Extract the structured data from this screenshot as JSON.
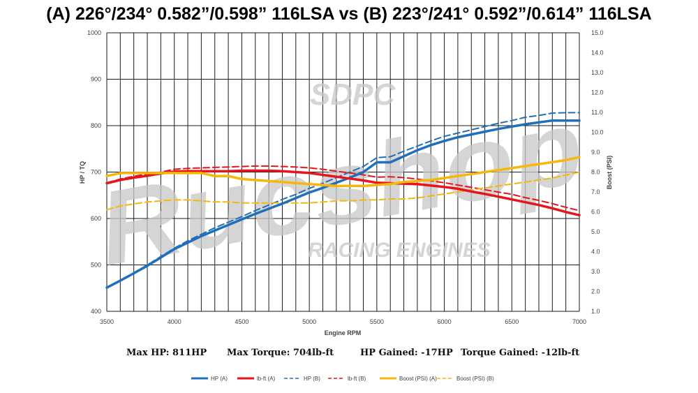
{
  "title": "(A) 226°/234° 0.582”/0.598” 116LSA vs (B) 223°/241° 0.592”/0.614” 116LSA",
  "watermark": {
    "main": "Rucshop",
    "top": "SDPC",
    "bottom": "RACING ENGINES"
  },
  "stats": {
    "max_hp": "Max HP: 811HP",
    "max_torque": "Max Torque: 704lb-ft",
    "hp_gained": "HP Gained: -17HP",
    "torque_gained": "Torque Gained: -12lb-ft"
  },
  "chart_data": {
    "type": "line",
    "xlabel": "Engine RPM",
    "ylabel": "HP / TQ",
    "y2label": "Boost (PSI)",
    "xlim": [
      3500,
      7000
    ],
    "ylim": [
      400,
      1000
    ],
    "y2lim": [
      1.0,
      15.0
    ],
    "x_ticks": [
      3500,
      4000,
      4500,
      5000,
      5500,
      6000,
      6500,
      7000
    ],
    "y_ticks": [
      400,
      500,
      600,
      700,
      800,
      900,
      1000
    ],
    "y2_ticks": [
      "1.0",
      "2.0",
      "3.0",
      "4.0",
      "5.0",
      "6.0",
      "7.0",
      "8.0",
      "9.0",
      "10.0",
      "11.0",
      "12.0",
      "13.0",
      "14.0",
      "15.0"
    ],
    "grid": true,
    "legend_position": "bottom",
    "x": [
      3500,
      3600,
      3700,
      3800,
      3900,
      4000,
      4100,
      4200,
      4300,
      4400,
      4500,
      4600,
      4700,
      4800,
      4900,
      5000,
      5100,
      5200,
      5300,
      5400,
      5500,
      5600,
      5700,
      5800,
      5900,
      6000,
      6100,
      6200,
      6300,
      6400,
      6500,
      6600,
      6700,
      6800,
      6900,
      7000
    ],
    "series": [
      {
        "name": "HP (A)",
        "axis": "left",
        "color": "#1f6fba",
        "dash": false,
        "width": 3.5,
        "values": [
          451,
          466,
          482,
          498,
          516,
          534,
          548,
          562,
          574,
          586,
          598,
          610,
          621,
          632,
          644,
          656,
          666,
          677,
          688,
          700,
          721,
          721,
          734,
          747,
          758,
          767,
          775,
          781,
          787,
          793,
          798,
          803,
          807,
          811,
          811,
          811
        ]
      },
      {
        "name": "lb-ft (A)",
        "axis": "left",
        "color": "#e8131b",
        "dash": false,
        "width": 3.5,
        "values": [
          676,
          683,
          688,
          692,
          697,
          701,
          702,
          702,
          702,
          702,
          703,
          703,
          703,
          702,
          700,
          698,
          694,
          690,
          686,
          682,
          677,
          676,
          675,
          674,
          671,
          668,
          664,
          658,
          653,
          647,
          641,
          635,
          629,
          622,
          614,
          607
        ]
      },
      {
        "name": "HP (B)",
        "axis": "left",
        "color": "#1f6fba",
        "dash": true,
        "width": 2,
        "values": [
          451,
          467,
          483,
          500,
          518,
          536,
          552,
          566,
          580,
          592,
          604,
          617,
          629,
          641,
          652,
          665,
          676,
          688,
          700,
          712,
          731,
          733,
          745,
          756,
          767,
          777,
          784,
          791,
          798,
          805,
          811,
          818,
          822,
          827,
          828,
          828
        ]
      },
      {
        "name": "lb-ft (B)",
        "axis": "left",
        "color": "#e8131b",
        "dash": true,
        "width": 2,
        "values": [
          677,
          685,
          691,
          696,
          700,
          706,
          708,
          709,
          710,
          711,
          712,
          713,
          713,
          712,
          711,
          709,
          706,
          702,
          698,
          694,
          689,
          690,
          688,
          685,
          681,
          677,
          672,
          667,
          662,
          657,
          652,
          645,
          639,
          632,
          624,
          617
        ]
      },
      {
        "name": "Boost (PSI) (A)",
        "axis": "right",
        "color": "#f5b80a",
        "dash": false,
        "width": 3.5,
        "values": [
          7.8,
          7.95,
          7.95,
          7.95,
          7.95,
          7.95,
          7.95,
          7.95,
          7.8,
          7.8,
          7.65,
          7.6,
          7.55,
          7.5,
          7.45,
          7.4,
          7.35,
          7.3,
          7.3,
          7.3,
          7.35,
          7.4,
          7.5,
          7.55,
          7.6,
          7.7,
          7.8,
          7.9,
          8.0,
          8.1,
          8.2,
          8.3,
          8.4,
          8.5,
          8.6,
          8.75
        ]
      },
      {
        "name": "Boost (PSI) (B)",
        "axis": "right",
        "color": "#f5b80a",
        "dash": true,
        "width": 2,
        "values": [
          6.1,
          6.3,
          6.4,
          6.5,
          6.55,
          6.6,
          6.6,
          6.55,
          6.5,
          6.5,
          6.45,
          6.45,
          6.45,
          6.45,
          6.45,
          6.45,
          6.5,
          6.55,
          6.55,
          6.6,
          6.6,
          6.65,
          6.65,
          6.7,
          6.8,
          6.9,
          7.0,
          7.1,
          7.2,
          7.3,
          7.4,
          7.5,
          7.6,
          7.7,
          7.85,
          8.0
        ]
      }
    ]
  }
}
